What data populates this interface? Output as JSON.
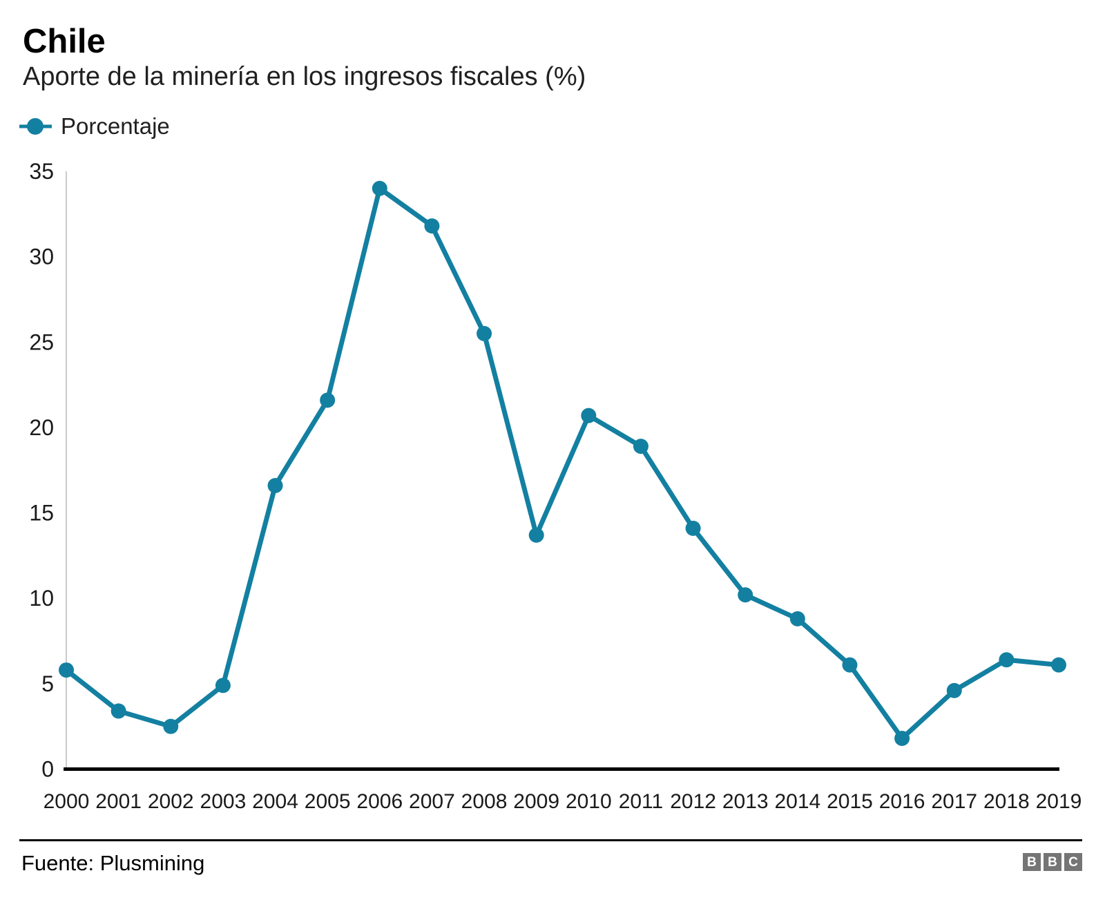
{
  "header": {
    "title": "Chile",
    "subtitle": "Aporte de la minería en los ingresos fiscales (%)"
  },
  "legend": {
    "label": "Porcentaje",
    "marker_color": "#1380A1"
  },
  "chart_data": {
    "type": "line",
    "title": "Chile",
    "subtitle": "Aporte de la minería en los ingresos fiscales (%)",
    "x": [
      2000,
      2001,
      2002,
      2003,
      2004,
      2005,
      2006,
      2007,
      2008,
      2009,
      2010,
      2011,
      2012,
      2013,
      2014,
      2015,
      2016,
      2017,
      2018,
      2019
    ],
    "series": [
      {
        "name": "Porcentaje",
        "color": "#1380A1",
        "values": [
          5.8,
          3.4,
          2.5,
          4.9,
          16.6,
          21.6,
          34.0,
          31.8,
          25.5,
          13.7,
          20.7,
          18.9,
          14.1,
          10.2,
          8.8,
          6.1,
          1.8,
          4.6,
          6.4,
          6.1
        ]
      }
    ],
    "xlabel": "",
    "ylabel": "",
    "ylim": [
      0,
      35
    ],
    "yticks": [
      0,
      5,
      10,
      15,
      20,
      25,
      30,
      35
    ],
    "grid": false,
    "legend_position": "top-left",
    "axis_line_color": "#000000",
    "y_axis_line_color": "#cbcbcb",
    "tick_label_color": "#1a1a1a"
  },
  "footer": {
    "source": "Fuente: Plusmining",
    "logo_letters": [
      "B",
      "B",
      "C"
    ]
  }
}
